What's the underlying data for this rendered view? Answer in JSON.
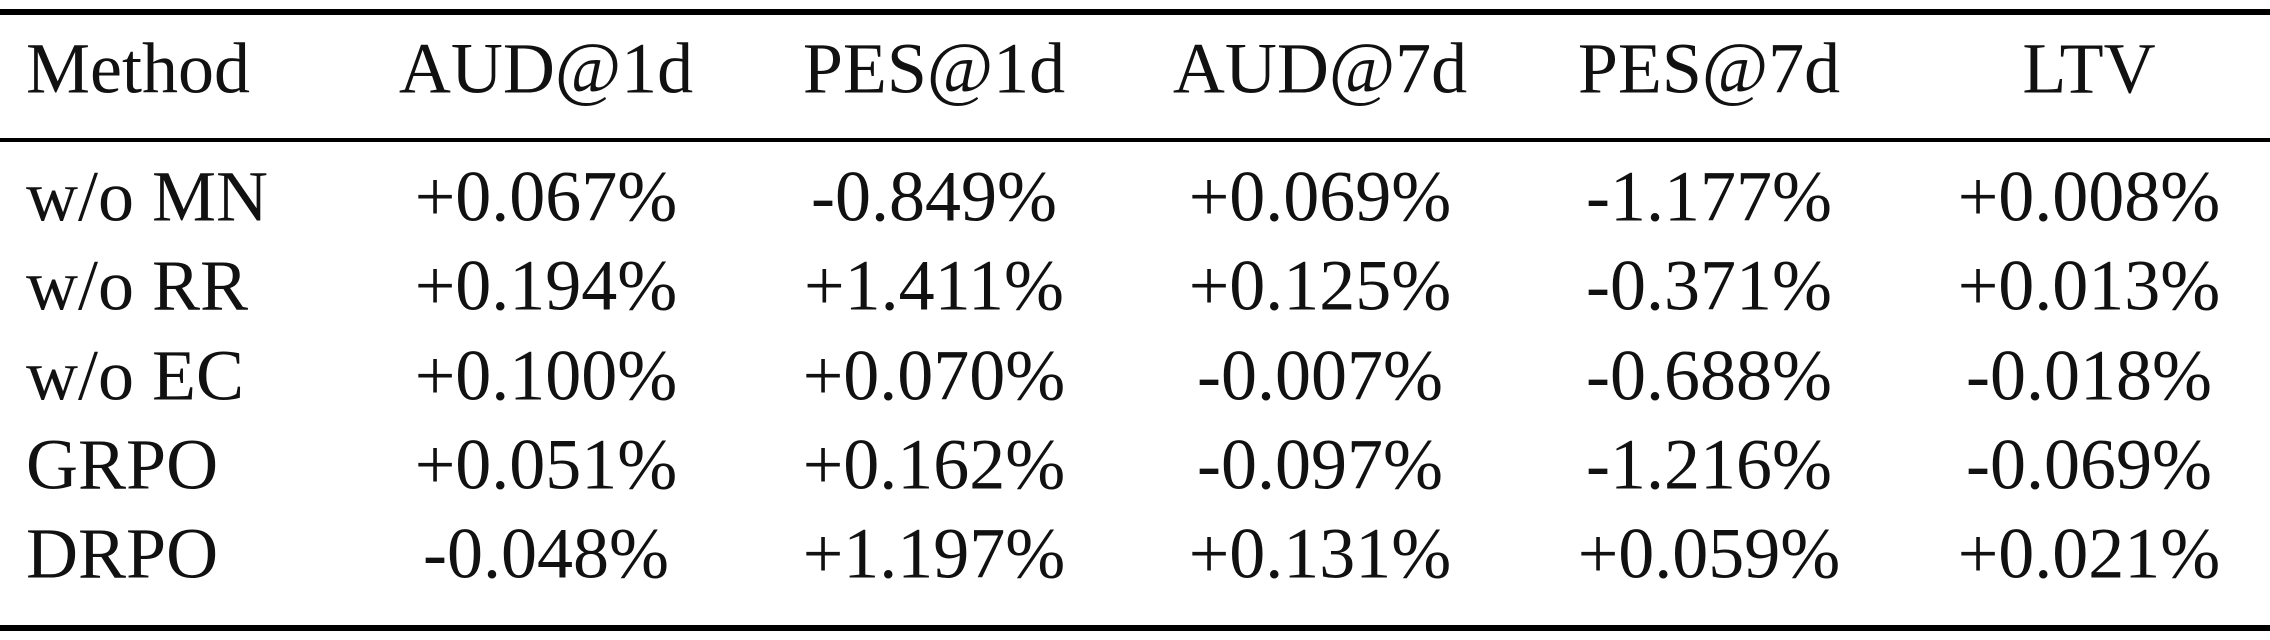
{
  "table": {
    "header": [
      "Method",
      "AUD@1d",
      "PES@1d",
      "AUD@7d",
      "PES@7d",
      "LTV"
    ],
    "rows": [
      [
        "w/o MN",
        "+0.067%",
        "-0.849%",
        "+0.069%",
        "-1.177%",
        "+0.008%"
      ],
      [
        "w/o RR",
        "+0.194%",
        "+1.411%",
        "+0.125%",
        "-0.371%",
        "+0.013%"
      ],
      [
        "w/o EC",
        "+0.100%",
        "+0.070%",
        "-0.007%",
        "-0.688%",
        "-0.018%"
      ],
      [
        "GRPO",
        "+0.051%",
        "+0.162%",
        "-0.097%",
        "-1.216%",
        "-0.069%"
      ],
      [
        "DRPO",
        "-0.048%",
        "+1.197%",
        "+0.131%",
        "+0.059%",
        "+0.021%"
      ]
    ]
  }
}
